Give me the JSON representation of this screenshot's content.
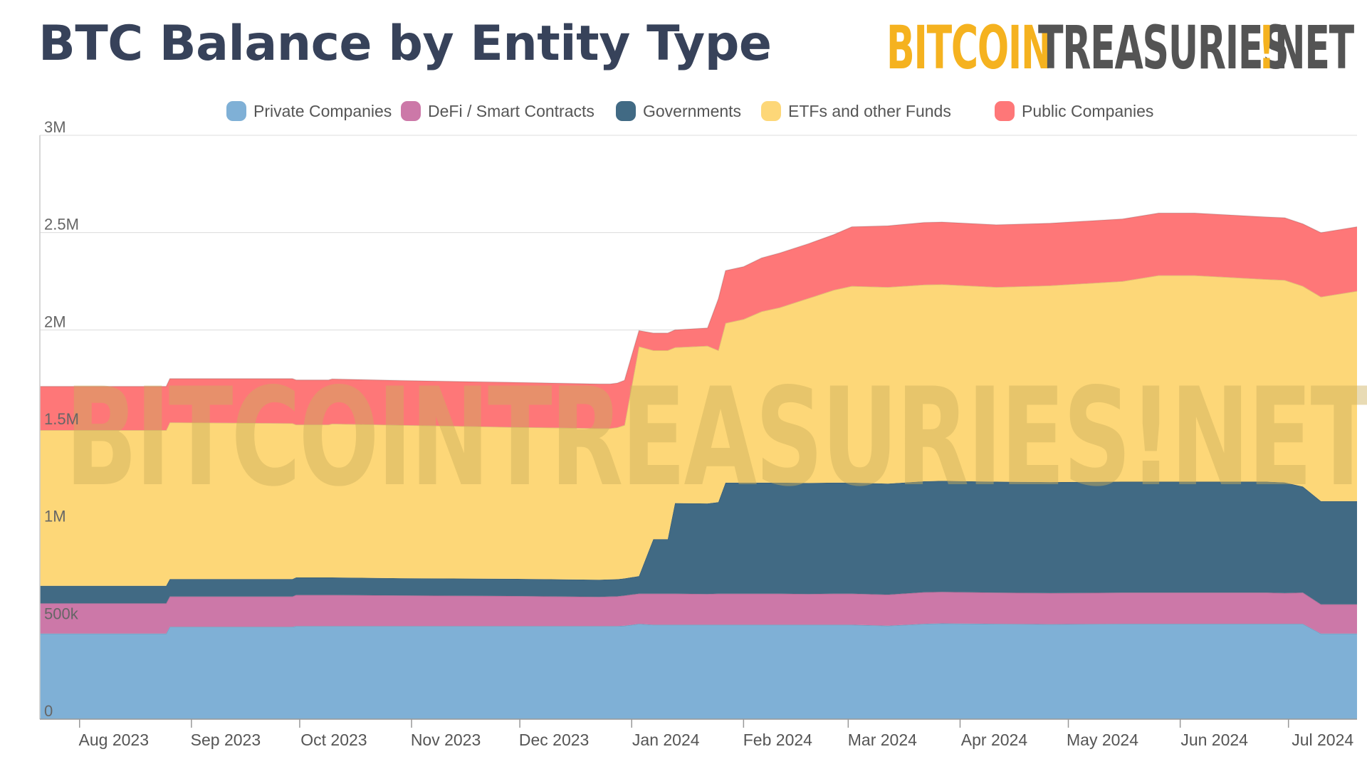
{
  "page": {
    "title": "BTC Balance by Entity Type",
    "brand_part1": "BITCOIN",
    "brand_part2": "TREASURIES",
    "brand_bang": "!",
    "brand_part3": "NET",
    "watermark": "BITCOINTREASURIES!NET"
  },
  "chart_data": {
    "type": "area",
    "stacked": true,
    "title": "BTC Balance by Entity Type",
    "xlabel": "",
    "ylabel": "",
    "ylim": [
      0,
      3000000
    ],
    "yticks": [
      0,
      500000,
      1000000,
      1500000,
      2000000,
      2500000,
      3000000
    ],
    "ytick_labels": [
      "0",
      "500k",
      "1M",
      "1.5M",
      "2M",
      "2.5M",
      "3M"
    ],
    "xtick_labels": [
      "Aug 2023",
      "Sep 2023",
      "Oct 2023",
      "Nov 2023",
      "Dec 2023",
      "Jan 2024",
      "Feb 2024",
      "Mar 2024",
      "Apr 2024",
      "May 2024",
      "Jun 2024",
      "Jul 2024"
    ],
    "xtick_days": [
      11,
      42,
      72,
      103,
      133,
      164,
      195,
      224,
      255,
      285,
      316,
      346
    ],
    "x_range_days": [
      0,
      365
    ],
    "x": [
      0,
      35,
      36,
      70,
      71,
      80,
      81,
      100,
      130,
      155,
      158,
      160,
      162,
      166,
      170,
      174,
      176,
      185,
      188,
      190,
      195,
      200,
      205,
      213,
      220,
      225,
      235,
      245,
      250,
      265,
      280,
      300,
      310,
      320,
      340,
      345,
      350,
      355,
      365
    ],
    "legend": {
      "position": "top",
      "entries": [
        "Private Companies",
        "DeFi / Smart Contracts",
        "Governments",
        "ETFs and other Funds",
        "Public Companies"
      ]
    },
    "gridlines": true,
    "series": [
      {
        "name": "Private Companies",
        "color": "#7fb0d6",
        "values": [
          440000,
          440000,
          475000,
          475000,
          478000,
          478000,
          478000,
          478000,
          478000,
          478000,
          478000,
          478000,
          480000,
          490000,
          485000,
          485000,
          485000,
          485000,
          485000,
          485000,
          485000,
          485000,
          485000,
          485000,
          485000,
          485000,
          480000,
          490000,
          492000,
          490000,
          488000,
          490000,
          490000,
          490000,
          490000,
          490000,
          490000,
          440000,
          440000
        ]
      },
      {
        "name": "DeFi / Smart Contracts",
        "color": "#cc78a8",
        "values": [
          155000,
          155000,
          155000,
          155000,
          160000,
          160000,
          160000,
          158000,
          155000,
          150000,
          152000,
          153000,
          155000,
          155000,
          160000,
          160000,
          160000,
          158000,
          160000,
          160000,
          160000,
          160000,
          160000,
          158000,
          160000,
          160000,
          160000,
          162000,
          162000,
          160000,
          160000,
          160000,
          160000,
          160000,
          160000,
          158000,
          160000,
          150000,
          150000
        ]
      },
      {
        "name": "Governments",
        "color": "#416a84",
        "values": [
          90000,
          90000,
          90000,
          90000,
          90000,
          90000,
          90000,
          88000,
          88000,
          88000,
          88000,
          88000,
          88000,
          90000,
          280000,
          280000,
          465000,
          465000,
          470000,
          570000,
          570000,
          570000,
          570000,
          570000,
          570000,
          570000,
          570000,
          570000,
          570000,
          570000,
          570000,
          570000,
          570000,
          570000,
          570000,
          568000,
          545000,
          530000,
          530000
        ]
      },
      {
        "name": "ETFs and other Funds",
        "color": "#fdd778",
        "values": [
          800000,
          800000,
          805000,
          800000,
          785000,
          785000,
          790000,
          787000,
          780000,
          778000,
          776000,
          780000,
          788000,
          1180000,
          970000,
          970000,
          800000,
          810000,
          780000,
          820000,
          840000,
          880000,
          900000,
          950000,
          990000,
          1010000,
          1010000,
          1010000,
          1010000,
          1000000,
          1010000,
          1030000,
          1060000,
          1060000,
          1040000,
          1040000,
          1030000,
          1050000,
          1080000
        ]
      },
      {
        "name": "Public Companies",
        "color": "#fe7778",
        "values": [
          225000,
          225000,
          225000,
          230000,
          230000,
          230000,
          230000,
          229000,
          230000,
          228000,
          228000,
          228000,
          230000,
          82000,
          89000,
          89000,
          90000,
          92000,
          265000,
          270000,
          270000,
          275000,
          280000,
          280000,
          285000,
          305000,
          315000,
          320000,
          320000,
          320000,
          320000,
          320000,
          320000,
          320000,
          320000,
          320000,
          320000,
          330000,
          330000
        ]
      }
    ]
  }
}
